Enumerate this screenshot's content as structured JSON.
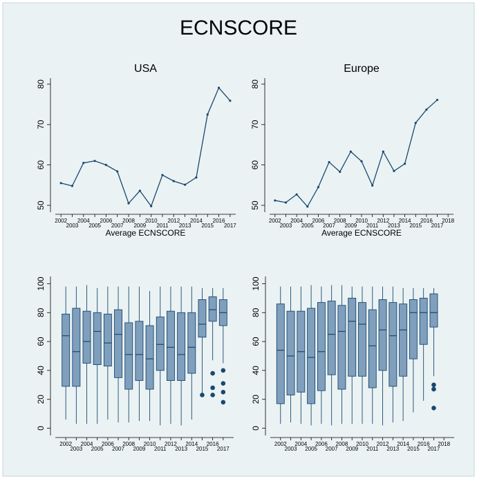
{
  "title": "ECNSCORE",
  "chart_data": [
    {
      "type": "line",
      "title": "USA",
      "x_label": "Average ECNSCORE",
      "color": "#1a476f",
      "x": [
        2002,
        2003,
        2004,
        2005,
        2006,
        2007,
        2008,
        2009,
        2010,
        2011,
        2012,
        2013,
        2014,
        2015,
        2016,
        2017
      ],
      "values": [
        55.5,
        54.8,
        60.5,
        61.0,
        60.0,
        58.4,
        50.5,
        53.6,
        49.8,
        57.5,
        56.0,
        55.1,
        56.9,
        72.5,
        79.1,
        75.9
      ],
      "xlim": [
        2001.5,
        2017.5
      ],
      "xticks": [
        2002,
        2003,
        2004,
        2005,
        2006,
        2007,
        2008,
        2009,
        2010,
        2011,
        2012,
        2013,
        2014,
        2015,
        2016,
        2017
      ],
      "ylim": [
        48.3,
        81.5
      ],
      "yticks": [
        50,
        60,
        70,
        80
      ]
    },
    {
      "type": "line",
      "title": "Europe",
      "x_label": "Average ECNSCORE",
      "color": "#1a476f",
      "x": [
        2002,
        2003,
        2004,
        2005,
        2006,
        2007,
        2008,
        2009,
        2010,
        2011,
        2012,
        2013,
        2014,
        2015,
        2016,
        2017
      ],
      "values": [
        51.2,
        50.7,
        52.7,
        49.7,
        54.5,
        60.7,
        58.3,
        63.3,
        60.9,
        54.9,
        63.3,
        58.5,
        60.3,
        70.4,
        73.7,
        76.1
      ],
      "xlim": [
        2001.5,
        2018.5
      ],
      "xticks": [
        2002,
        2003,
        2004,
        2005,
        2006,
        2007,
        2008,
        2009,
        2010,
        2011,
        2012,
        2013,
        2014,
        2015,
        2016,
        2017,
        2018
      ],
      "ylim": [
        48.3,
        81.5
      ],
      "yticks": [
        50,
        60,
        70,
        80
      ]
    },
    {
      "type": "box",
      "color": "#7f9fbd",
      "edge_color": "#1a476f",
      "x": [
        2002,
        2003,
        2004,
        2005,
        2006,
        2007,
        2008,
        2009,
        2010,
        2011,
        2012,
        2013,
        2014,
        2015,
        2016,
        2017
      ],
      "low": [
        6,
        3,
        3,
        3,
        6,
        4,
        4,
        5,
        5,
        2,
        3,
        2,
        6,
        24,
        47,
        45
      ],
      "q1": [
        29,
        29,
        45,
        44,
        43,
        35,
        27,
        33,
        27,
        40,
        33,
        33,
        38,
        63,
        74,
        71
      ],
      "median": [
        64,
        53,
        60,
        67,
        59,
        65,
        51,
        51,
        48,
        58,
        56,
        51,
        56,
        72,
        82,
        80
      ],
      "q3": [
        79,
        83,
        81,
        80,
        79,
        82,
        73,
        74,
        71,
        77,
        81,
        80,
        80,
        89,
        91,
        89
      ],
      "high": [
        98,
        98,
        99,
        97,
        98,
        98,
        98,
        98,
        95,
        98,
        98,
        98,
        98,
        97,
        97,
        97
      ],
      "outliers_x": [
        2015,
        2016,
        2016,
        2016,
        2017,
        2017,
        2017,
        2017
      ],
      "outliers": [
        23,
        38,
        28,
        23,
        40,
        31,
        25,
        18
      ],
      "xlim": [
        2001,
        2018
      ],
      "xticks": [
        2002,
        2003,
        2004,
        2005,
        2006,
        2007,
        2008,
        2009,
        2010,
        2011,
        2012,
        2013,
        2014,
        2015,
        2016,
        2017
      ],
      "ylim": [
        -5,
        105
      ],
      "yticks": [
        0,
        20,
        40,
        60,
        80,
        100
      ]
    },
    {
      "type": "box",
      "color": "#7f9fbd",
      "edge_color": "#1a476f",
      "x": [
        2002,
        2003,
        2004,
        2005,
        2006,
        2007,
        2008,
        2009,
        2010,
        2011,
        2012,
        2013,
        2014,
        2015,
        2016,
        2017
      ],
      "low": [
        3,
        4,
        3,
        2,
        3,
        2,
        3,
        3,
        3,
        3,
        2,
        4,
        5,
        11,
        19,
        36
      ],
      "q1": [
        17,
        23,
        25,
        17,
        26,
        37,
        27,
        36,
        36,
        28,
        40,
        29,
        36,
        48,
        58,
        70
      ],
      "median": [
        54,
        50,
        53,
        49,
        53,
        65,
        67,
        74,
        72,
        57,
        68,
        64,
        68,
        80,
        80,
        80
      ],
      "q3": [
        86,
        81,
        81,
        83,
        87,
        88,
        85,
        90,
        87,
        82,
        89,
        87,
        86,
        89,
        90,
        93
      ],
      "high": [
        98,
        98,
        98,
        99,
        98,
        99,
        99,
        98,
        98,
        98,
        98,
        98,
        97,
        97,
        97,
        97
      ],
      "outliers_x": [
        2017,
        2017,
        2017
      ],
      "outliers": [
        30,
        27,
        14
      ],
      "xlim": [
        2001,
        2019
      ],
      "xticks": [
        2002,
        2003,
        2004,
        2005,
        2006,
        2007,
        2008,
        2009,
        2010,
        2011,
        2012,
        2013,
        2014,
        2015,
        2016,
        2017,
        2018
      ],
      "ylim": [
        -5,
        105
      ],
      "yticks": [
        0,
        20,
        40,
        60,
        80,
        100
      ]
    }
  ]
}
